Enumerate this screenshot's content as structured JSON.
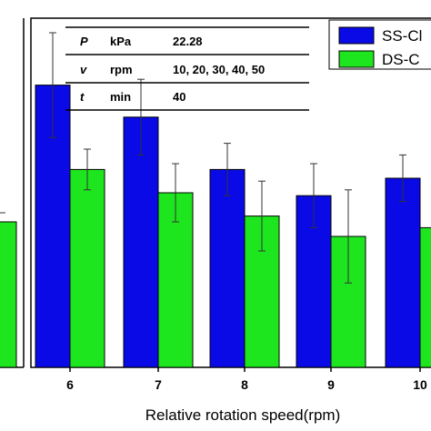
{
  "chart_data": {
    "type": "bar",
    "categories": [
      "6",
      "7",
      "8",
      "9",
      "10"
    ],
    "series": [
      {
        "name": "SS-Cl",
        "color": "#0a0ae6",
        "values": [
          0.97,
          0.86,
          0.68,
          0.59,
          0.65
        ],
        "errors": [
          0.18,
          0.13,
          0.09,
          0.11,
          0.08
        ]
      },
      {
        "name": "DS-C",
        "color": "#1ee61e",
        "values": [
          0.68,
          0.6,
          0.52,
          0.45,
          0.48
        ],
        "errors": [
          0.07,
          0.1,
          0.12,
          0.16,
          0.1
        ]
      }
    ],
    "partial_left_bar": {
      "color": "#1ee61e",
      "value": 0.5
    },
    "xlabel": "Relative rotation speed(rpm)",
    "ylim": [
      0,
      1.2
    ],
    "legend_position": "top-right",
    "params": [
      {
        "symbol": "P",
        "unit": "kPa",
        "value": "22.28"
      },
      {
        "symbol": "v",
        "unit": "rpm",
        "value": "10, 20, 30, 40, 50"
      },
      {
        "symbol": "t",
        "unit": "min",
        "value": "40"
      }
    ]
  }
}
